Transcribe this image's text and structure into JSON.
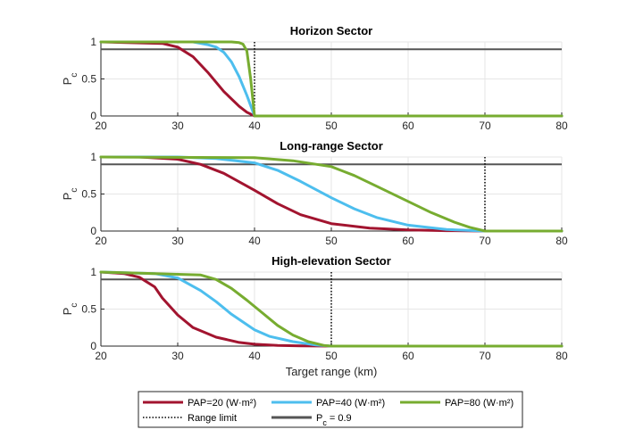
{
  "chart_data": [
    {
      "type": "line",
      "title": "Horizon Sector",
      "xlabel": "",
      "ylabel": "P",
      "ylabel_sub": "c",
      "xlim": [
        20,
        80
      ],
      "ylim": [
        0,
        1
      ],
      "xticks": [
        20,
        30,
        40,
        50,
        60,
        70,
        80
      ],
      "yticks": [
        0,
        0.5,
        1
      ],
      "grid": true,
      "range_limit_km": 40,
      "threshold": 0.9,
      "series": [
        {
          "name": "PAP=20 (W·m²)",
          "color": "#a2142f",
          "x": [
            20,
            28,
            30,
            32,
            34,
            36,
            38,
            39,
            40,
            80
          ],
          "y": [
            1,
            0.98,
            0.93,
            0.8,
            0.58,
            0.33,
            0.13,
            0.05,
            0,
            0
          ]
        },
        {
          "name": "PAP=40 (W·m²)",
          "color": "#4dbeee",
          "x": [
            20,
            32,
            34,
            35,
            36,
            37,
            38,
            39,
            40,
            80
          ],
          "y": [
            1,
            1,
            0.96,
            0.93,
            0.86,
            0.73,
            0.53,
            0.28,
            0,
            0
          ]
        },
        {
          "name": "PAP=80 (W·m²)",
          "color": "#77ac30",
          "x": [
            20,
            37,
            38,
            38.5,
            39,
            39.5,
            40,
            80
          ],
          "y": [
            1,
            1,
            0.99,
            0.97,
            0.88,
            0.5,
            0,
            0
          ]
        }
      ]
    },
    {
      "type": "line",
      "title": "Long-range Sector",
      "xlabel": "",
      "ylabel": "P",
      "ylabel_sub": "c",
      "xlim": [
        20,
        80
      ],
      "ylim": [
        0,
        1
      ],
      "xticks": [
        20,
        30,
        40,
        50,
        60,
        70,
        80
      ],
      "yticks": [
        0,
        0.5,
        1
      ],
      "grid": true,
      "range_limit_km": 70,
      "threshold": 0.9,
      "series": [
        {
          "name": "PAP=20 (W·m²)",
          "color": "#a2142f",
          "x": [
            20,
            25,
            30,
            33,
            36,
            40,
            43,
            46,
            50,
            55,
            60,
            65,
            70,
            80
          ],
          "y": [
            1,
            1,
            0.97,
            0.9,
            0.78,
            0.55,
            0.37,
            0.22,
            0.1,
            0.04,
            0.015,
            0.005,
            0,
            0
          ]
        },
        {
          "name": "PAP=40 (W·m²)",
          "color": "#4dbeee",
          "x": [
            20,
            30,
            35,
            40,
            43,
            46,
            50,
            53,
            56,
            60,
            65,
            70,
            80
          ],
          "y": [
            1,
            1,
            0.98,
            0.92,
            0.82,
            0.67,
            0.45,
            0.3,
            0.18,
            0.08,
            0.02,
            0,
            0
          ]
        },
        {
          "name": "PAP=80 (W·m²)",
          "color": "#77ac30",
          "x": [
            20,
            40,
            45,
            50,
            53,
            56,
            60,
            63,
            66,
            68,
            70,
            80
          ],
          "y": [
            1,
            0.99,
            0.95,
            0.87,
            0.75,
            0.6,
            0.4,
            0.25,
            0.12,
            0.05,
            0,
            0
          ]
        }
      ]
    },
    {
      "type": "line",
      "title": "High-elevation Sector",
      "xlabel": "Target range (km)",
      "ylabel": "P",
      "ylabel_sub": "c",
      "xlim": [
        20,
        80
      ],
      "ylim": [
        0,
        1
      ],
      "xticks": [
        20,
        30,
        40,
        50,
        60,
        70,
        80
      ],
      "yticks": [
        0,
        0.5,
        1
      ],
      "grid": true,
      "range_limit_km": 50,
      "threshold": 0.9,
      "series": [
        {
          "name": "PAP=20 (W·m²)",
          "color": "#a2142f",
          "x": [
            20,
            23,
            25,
            27,
            28,
            30,
            32,
            35,
            38,
            40,
            43,
            46,
            50,
            80
          ],
          "y": [
            1,
            0.98,
            0.93,
            0.8,
            0.65,
            0.42,
            0.25,
            0.12,
            0.05,
            0.025,
            0.01,
            0.003,
            0,
            0
          ]
        },
        {
          "name": "PAP=40 (W·m²)",
          "color": "#4dbeee",
          "x": [
            20,
            27,
            30,
            33,
            35,
            37,
            40,
            42,
            45,
            48,
            50,
            80
          ],
          "y": [
            1,
            0.98,
            0.92,
            0.75,
            0.6,
            0.43,
            0.22,
            0.13,
            0.06,
            0.015,
            0,
            0
          ]
        },
        {
          "name": "PAP=80 (W·m²)",
          "color": "#77ac30",
          "x": [
            20,
            33,
            35,
            37,
            39,
            41,
            43,
            45,
            47,
            49,
            50,
            80
          ],
          "y": [
            1,
            0.96,
            0.9,
            0.78,
            0.62,
            0.45,
            0.28,
            0.15,
            0.06,
            0.01,
            0,
            0
          ]
        }
      ]
    }
  ],
  "legend": {
    "placement": "bottom",
    "entries": [
      {
        "label": "PAP=20 (W·m²)",
        "color": "#a2142f",
        "style": "solid"
      },
      {
        "label": "PAP=40 (W·m²)",
        "color": "#4dbeee",
        "style": "solid"
      },
      {
        "label": "PAP=80 (W·m²)",
        "color": "#77ac30",
        "style": "solid"
      },
      {
        "label": "Range limit",
        "color": "#000000",
        "style": "dotted"
      },
      {
        "label": "P",
        "sub": "c",
        "suffix": " = 0.9",
        "color": "#555555",
        "style": "solid"
      }
    ]
  }
}
